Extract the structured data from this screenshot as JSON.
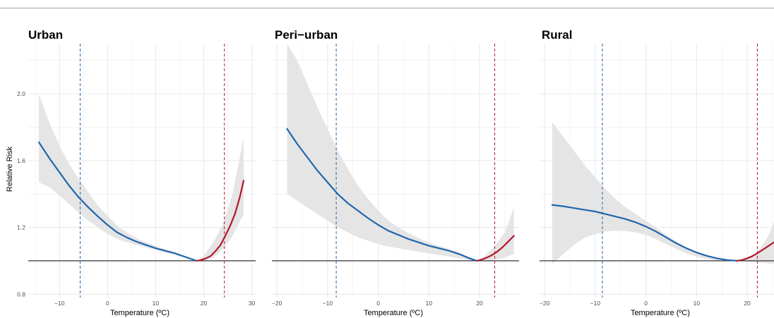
{
  "colors": {
    "cold": "#2166ac",
    "heat": "#b2182b",
    "ci": "#e5e5e5",
    "ref": "#333333",
    "grid": "#ebebeb"
  },
  "chart_data": [
    {
      "type": "line",
      "title": "Urban",
      "xlabel": "Temperature (ºC)",
      "ylabel": "Relative Risk",
      "xlim": [
        -16.5,
        30.8
      ],
      "ylim": [
        0.78,
        2.3
      ],
      "xticks": [
        -10,
        0,
        10,
        20,
        30
      ],
      "yticks": [
        0.8,
        1.2,
        1.6,
        2.0
      ],
      "reference_y": 1.0,
      "cold_threshold": -5.7,
      "heat_threshold": 24.3,
      "mmt": 18.5,
      "cold_curve": {
        "x": [
          -14.3,
          -12,
          -10,
          -8,
          -6,
          -4,
          -2,
          0,
          2,
          4,
          6,
          8,
          10,
          12,
          14,
          16,
          18.5
        ],
        "y": [
          1.71,
          1.61,
          1.53,
          1.45,
          1.38,
          1.32,
          1.265,
          1.215,
          1.17,
          1.14,
          1.115,
          1.095,
          1.075,
          1.06,
          1.045,
          1.025,
          1.0
        ]
      },
      "heat_curve": {
        "x": [
          18.5,
          19.5,
          20.5,
          21.5,
          22.5,
          23.5,
          24.5,
          25.5,
          26.5,
          27.5,
          28.3
        ],
        "y": [
          1.0,
          1.005,
          1.015,
          1.03,
          1.06,
          1.095,
          1.15,
          1.21,
          1.28,
          1.38,
          1.48
        ]
      },
      "ci_upper": {
        "x": [
          -14.3,
          -12,
          -10,
          -8,
          -6,
          -4,
          -2,
          0,
          2,
          4,
          6,
          8,
          10,
          12,
          14,
          16,
          18.5,
          20,
          22,
          24,
          26,
          28.3
        ],
        "y": [
          2.0,
          1.82,
          1.69,
          1.58,
          1.49,
          1.41,
          1.33,
          1.27,
          1.21,
          1.17,
          1.135,
          1.11,
          1.09,
          1.07,
          1.05,
          1.03,
          1.0,
          1.03,
          1.11,
          1.22,
          1.4,
          1.74
        ]
      },
      "ci_lower": {
        "x": [
          -14.3,
          -12,
          -10,
          -8,
          -6,
          -4,
          -2,
          0,
          2,
          4,
          6,
          8,
          10,
          12,
          14,
          16,
          18.5,
          20,
          22,
          24,
          26,
          28.3
        ],
        "y": [
          1.47,
          1.44,
          1.39,
          1.34,
          1.29,
          1.24,
          1.2,
          1.16,
          1.13,
          1.11,
          1.095,
          1.08,
          1.065,
          1.05,
          1.035,
          1.02,
          1.0,
          1.0,
          1.02,
          1.07,
          1.15,
          1.28
        ]
      }
    },
    {
      "type": "line",
      "title": "Peri−urban",
      "xlabel": "Temperature (ºC)",
      "ylabel": "",
      "xlim": [
        -21,
        27.8
      ],
      "ylim": [
        0.78,
        2.3
      ],
      "xticks": [
        -20,
        -10,
        0,
        10,
        20
      ],
      "yticks": [
        0.8,
        1.2,
        1.6,
        2.0
      ],
      "reference_y": 1.0,
      "cold_threshold": -8.3,
      "heat_threshold": 23.0,
      "mmt": 19.5,
      "cold_curve": {
        "x": [
          -18,
          -16,
          -14,
          -12,
          -10,
          -8,
          -6,
          -4,
          -2,
          0,
          2,
          4,
          6,
          8,
          10,
          12,
          14,
          16,
          18,
          19.5
        ],
        "y": [
          1.79,
          1.7,
          1.62,
          1.54,
          1.47,
          1.4,
          1.345,
          1.3,
          1.255,
          1.215,
          1.18,
          1.155,
          1.13,
          1.11,
          1.09,
          1.075,
          1.06,
          1.04,
          1.015,
          1.0
        ]
      },
      "heat_curve": {
        "x": [
          19.5,
          20.5,
          21.5,
          22.5,
          23.5,
          24.5,
          25.5,
          26.8
        ],
        "y": [
          1.0,
          1.008,
          1.02,
          1.035,
          1.055,
          1.08,
          1.11,
          1.15
        ]
      },
      "ci_upper": {
        "x": [
          -18,
          -16,
          -14,
          -12,
          -10,
          -8,
          -6,
          -4,
          -2,
          0,
          2,
          4,
          6,
          8,
          10,
          12,
          14,
          16,
          18,
          19.5,
          21,
          23,
          25,
          26.8
        ],
        "y": [
          2.3,
          2.2,
          2.06,
          1.92,
          1.79,
          1.66,
          1.55,
          1.45,
          1.37,
          1.3,
          1.24,
          1.2,
          1.165,
          1.135,
          1.11,
          1.09,
          1.07,
          1.05,
          1.02,
          1.0,
          1.03,
          1.09,
          1.17,
          1.32
        ]
      },
      "ci_lower": {
        "x": [
          -18,
          -16,
          -14,
          -12,
          -10,
          -8,
          -6,
          -4,
          -2,
          0,
          2,
          4,
          6,
          8,
          10,
          12,
          14,
          16,
          18,
          19.5,
          21,
          23,
          25,
          26.8
        ],
        "y": [
          1.4,
          1.36,
          1.32,
          1.28,
          1.24,
          1.2,
          1.17,
          1.14,
          1.12,
          1.1,
          1.085,
          1.075,
          1.065,
          1.055,
          1.045,
          1.035,
          1.025,
          1.015,
          1.005,
          1.0,
          1.0,
          1.005,
          1.02,
          1.04
        ]
      }
    },
    {
      "type": "line",
      "title": "Rural",
      "xlabel": "Temperature (ºC)",
      "ylabel": "",
      "xlim": [
        -21,
        27.8
      ],
      "ylim": [
        0.78,
        2.3
      ],
      "xticks": [
        -20,
        -10,
        0,
        10,
        20
      ],
      "yticks": [
        0.8,
        1.2,
        1.6,
        2.0
      ],
      "reference_y": 1.0,
      "cold_threshold": -8.6,
      "heat_threshold": 22.0,
      "mmt": 18.0,
      "cold_curve": {
        "x": [
          -18.5,
          -16,
          -14,
          -12,
          -10,
          -8,
          -6,
          -4,
          -2,
          0,
          2,
          4,
          6,
          8,
          10,
          12,
          14,
          16,
          18
        ],
        "y": [
          1.335,
          1.325,
          1.315,
          1.305,
          1.295,
          1.28,
          1.265,
          1.25,
          1.23,
          1.205,
          1.175,
          1.14,
          1.105,
          1.075,
          1.05,
          1.03,
          1.015,
          1.005,
          1.0
        ]
      },
      "heat_curve": {
        "x": [
          18,
          19,
          20,
          21,
          22,
          23,
          24,
          25,
          26,
          27.8
        ],
        "y": [
          1.0,
          1.005,
          1.015,
          1.028,
          1.045,
          1.065,
          1.085,
          1.105,
          1.125,
          1.16
        ]
      },
      "ci_upper": {
        "x": [
          -18.5,
          -16,
          -14,
          -12,
          -10,
          -8,
          -6,
          -4,
          -2,
          0,
          2,
          4,
          6,
          8,
          10,
          12,
          14,
          16,
          18,
          20,
          22,
          24,
          26,
          27.8
        ],
        "y": [
          1.83,
          1.73,
          1.65,
          1.57,
          1.5,
          1.43,
          1.37,
          1.32,
          1.28,
          1.24,
          1.2,
          1.155,
          1.115,
          1.08,
          1.055,
          1.035,
          1.02,
          1.008,
          1.0,
          1.01,
          1.05,
          1.14,
          1.28,
          1.38
        ]
      },
      "ci_lower": {
        "x": [
          -18.5,
          -16,
          -14,
          -12,
          -10,
          -8,
          -6,
          -4,
          -2,
          0,
          2,
          4,
          6,
          8,
          10,
          12,
          14,
          16,
          18,
          20,
          22,
          24,
          26,
          27.8
        ],
        "y": [
          0.98,
          1.05,
          1.1,
          1.14,
          1.16,
          1.175,
          1.18,
          1.178,
          1.17,
          1.155,
          1.13,
          1.1,
          1.07,
          1.045,
          1.025,
          1.01,
          1.003,
          1.0,
          0.998,
          0.995,
          0.99,
          0.985,
          0.98,
          0.97
        ]
      }
    }
  ]
}
